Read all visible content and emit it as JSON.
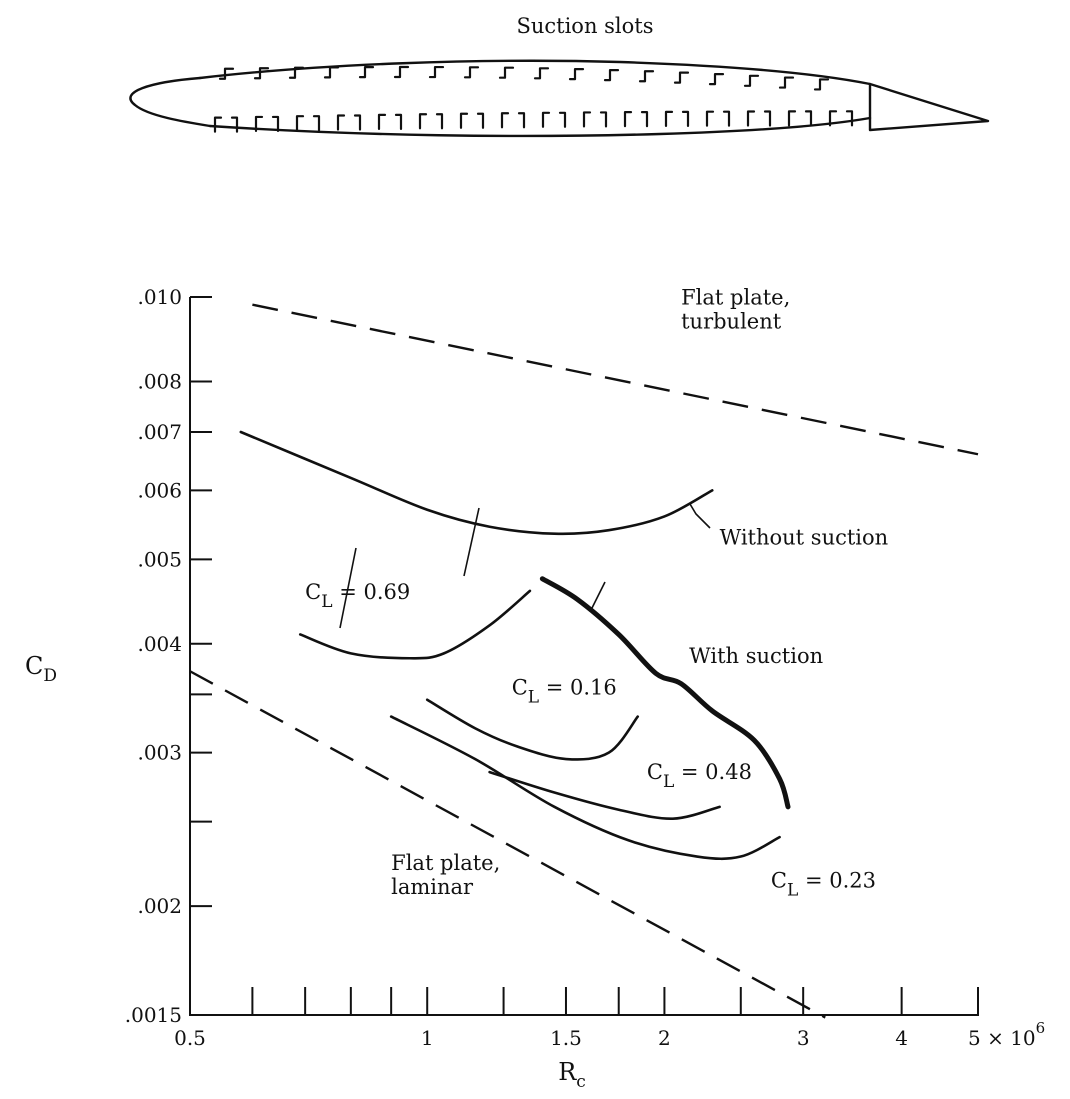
{
  "diagram": {
    "caption": "Suction slots",
    "upper_slot_count": 18,
    "lower_slot_count": 16
  },
  "chart_data": {
    "type": "line",
    "title": "",
    "xlabel": "R",
    "xlabel_sub": "c",
    "ylabel": "C",
    "ylabel_sub": "D",
    "x_scale": "log",
    "y_scale": "log",
    "xlim": [
      500000,
      5000000
    ],
    "ylim": [
      0.0015,
      0.01
    ],
    "x_ticks": [
      500000,
      600000,
      700000,
      800000,
      900000,
      1000000,
      1250000,
      1500000,
      1750000,
      2000000,
      2500000,
      3000000,
      4000000,
      5000000
    ],
    "x_tick_labels": [
      {
        "value": 500000,
        "label": "0.5"
      },
      {
        "value": 1000000,
        "label": "1"
      },
      {
        "value": 1500000,
        "label": "1.5"
      },
      {
        "value": 2000000,
        "label": "2"
      },
      {
        "value": 3000000,
        "label": "3"
      },
      {
        "value": 4000000,
        "label": "4"
      },
      {
        "value": 5000000,
        "label": "5 × 10",
        "exponent": "6"
      }
    ],
    "y_ticks": [
      0.0015,
      0.002,
      0.0025,
      0.003,
      0.0035,
      0.004,
      0.005,
      0.006,
      0.007,
      0.008,
      0.01
    ],
    "y_tick_labels": [
      {
        "value": 0.0015,
        "label": ".0015"
      },
      {
        "value": 0.002,
        "label": ".002"
      },
      {
        "value": 0.003,
        "label": ".003"
      },
      {
        "value": 0.004,
        "label": ".004"
      },
      {
        "value": 0.005,
        "label": ".005"
      },
      {
        "value": 0.006,
        "label": ".006"
      },
      {
        "value": 0.007,
        "label": ".007"
      },
      {
        "value": 0.008,
        "label": ".008"
      },
      {
        "value": 0.01,
        "label": ".010"
      }
    ],
    "grid": false,
    "legend": "none",
    "series": [
      {
        "name": "Flat plate, turbulent",
        "style": "dashed",
        "x": [
          600000,
          5000000
        ],
        "y": [
          0.0098,
          0.0066
        ]
      },
      {
        "name": "Flat plate, laminar",
        "style": "dashed",
        "x": [
          500000,
          3200000
        ],
        "y": [
          0.00372,
          0.00149
        ]
      },
      {
        "name": "Without suction",
        "style": "solid",
        "x": [
          580000,
          800000,
          1000000,
          1200000,
          1450000,
          1700000,
          2000000,
          2300000
        ],
        "y": [
          0.007,
          0.0062,
          0.0057,
          0.00545,
          0.00535,
          0.0054,
          0.0056,
          0.006
        ]
      },
      {
        "name": "With suction",
        "style": "solid-heavy",
        "x": [
          1400000,
          1550000,
          1750000,
          1950000,
          2100000,
          2300000,
          2600000,
          2800000,
          2870000
        ],
        "y": [
          0.00475,
          0.0045,
          0.0041,
          0.0037,
          0.0036,
          0.00335,
          0.0031,
          0.0028,
          0.0026
        ]
      },
      {
        "name": "C_L = 0.69",
        "style": "solid",
        "x": [
          690000,
          800000,
          950000,
          1050000,
          1200000,
          1350000
        ],
        "y": [
          0.0041,
          0.0039,
          0.00385,
          0.0039,
          0.0042,
          0.0046
        ]
      },
      {
        "name": "C_L = 0.16",
        "style": "solid",
        "x": [
          1000000,
          1150000,
          1300000,
          1500000,
          1700000,
          1850000
        ],
        "y": [
          0.00345,
          0.0032,
          0.00305,
          0.00295,
          0.003,
          0.0033
        ]
      },
      {
        "name": "C_L = 0.48",
        "style": "solid",
        "x": [
          1200000,
          1450000,
          1750000,
          2050000,
          2350000
        ],
        "y": [
          0.00285,
          0.0027,
          0.00258,
          0.00252,
          0.0026
        ]
      },
      {
        "name": "C_L = 0.23",
        "style": "solid",
        "x": [
          900000,
          1150000,
          1450000,
          1800000,
          2200000,
          2500000,
          2800000
        ],
        "y": [
          0.0033,
          0.00295,
          0.0026,
          0.00238,
          0.00228,
          0.00228,
          0.0024
        ]
      }
    ],
    "annotations": [
      {
        "text_lines": [
          "Flat plate,",
          "turbulent"
        ],
        "x": 2100000,
        "y": 0.0098
      },
      {
        "text_lines": [
          "Without suction"
        ],
        "x": 2350000,
        "y": 0.0052
      },
      {
        "text_lines": [
          "With suction"
        ],
        "x": 2150000,
        "y": 0.0038
      },
      {
        "text_lines": [
          "Flat plate,",
          "laminar"
        ],
        "x": 900000,
        "y": 0.0022
      },
      {
        "label": "C",
        "sub": "L",
        "value": "= 0.69",
        "x": 700000,
        "y": 0.0045
      },
      {
        "label": "C",
        "sub": "L",
        "value": "= 0.16",
        "x": 1280000,
        "y": 0.0035
      },
      {
        "label": "C",
        "sub": "L",
        "value": "= 0.48",
        "x": 1900000,
        "y": 0.0028
      },
      {
        "label": "C",
        "sub": "L",
        "value": "= 0.23",
        "x": 2730000,
        "y": 0.0021
      }
    ]
  }
}
